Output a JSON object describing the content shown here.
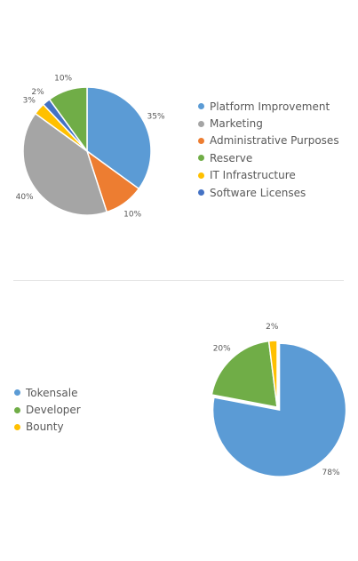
{
  "chart_data": [
    {
      "type": "pie",
      "title": "",
      "categories": [
        "Platform Improvement",
        "Marketing",
        "Administrative Purposes",
        "Reserve",
        "IT Infrastructure",
        "Software Licenses"
      ],
      "values": [
        35,
        40,
        10,
        10,
        3,
        2
      ],
      "labels": [
        "35%",
        "40%",
        "10%",
        "10%",
        "3%",
        "2%"
      ],
      "colors": [
        "#5b9bd5",
        "#a5a5a5",
        "#ed7d31",
        "#70ad47",
        "#ffc000",
        "#4472c4"
      ],
      "slice_order": [
        0,
        2,
        1,
        4,
        5,
        3
      ],
      "legend_position": "right"
    },
    {
      "type": "pie",
      "title": "",
      "categories": [
        "Tokensale",
        "Developer",
        "Bounty"
      ],
      "values": [
        78,
        20,
        2
      ],
      "labels": [
        "78%",
        "20%",
        "2%"
      ],
      "colors": [
        "#5b9bd5",
        "#70ad47",
        "#ffc000"
      ],
      "exploded": true,
      "legend_position": "left"
    }
  ]
}
